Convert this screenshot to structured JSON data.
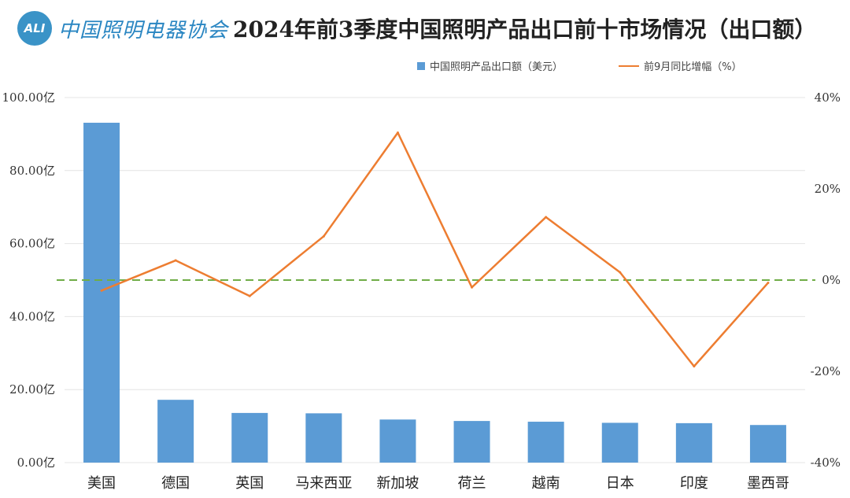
{
  "header": {
    "logo_badge": "ALI",
    "logo_text": "中国照明电器协会",
    "title": "2024年前3季度中国照明产品出口前十市场情况（出口额）"
  },
  "chart_data": {
    "type": "bar",
    "categories": [
      "美国",
      "德国",
      "英国",
      "马来西亚",
      "新加坡",
      "荷兰",
      "越南",
      "日本",
      "印度",
      "墨西哥"
    ],
    "series": [
      {
        "name": "中国照明产品出口额（美元）",
        "type": "bar",
        "axis": "left",
        "color": "#5b9bd5",
        "values": [
          93.1,
          17.2,
          13.6,
          13.5,
          11.8,
          11.4,
          11.2,
          10.9,
          10.8,
          10.3
        ]
      },
      {
        "name": "前9月同比增幅（%）",
        "type": "line",
        "axis": "right",
        "color": "#ed7d31",
        "values": [
          -2.3,
          4.3,
          -3.5,
          9.6,
          32.3,
          -1.6,
          13.8,
          1.7,
          -18.9,
          -0.6
        ]
      }
    ],
    "left_axis": {
      "ylim": [
        0,
        100
      ],
      "ticks": [
        "0.00亿",
        "20.00亿",
        "40.00亿",
        "60.00亿",
        "80.00亿",
        "100.00亿"
      ]
    },
    "right_axis": {
      "ylim": [
        -40,
        40
      ],
      "ticks": [
        "-40%",
        "-20%",
        "0%",
        "20%",
        "40%"
      ]
    },
    "reference_line": {
      "axis": "right",
      "value": 0,
      "style": "dashed",
      "color": "#70ad47"
    },
    "grid": true,
    "legend_position": "top"
  }
}
